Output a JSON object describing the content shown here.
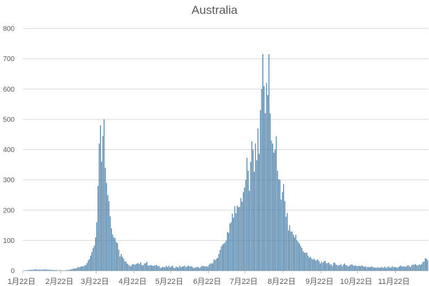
{
  "chart_data": {
    "type": "bar",
    "title": "Australia",
    "xlabel": "",
    "ylabel": "",
    "ylim": [
      0,
      800
    ],
    "y_ticks": [
      0,
      100,
      200,
      300,
      400,
      500,
      600,
      700,
      800
    ],
    "x_tick_labels": [
      "1月22日",
      "2月22日",
      "3月22日",
      "4月22日",
      "5月22日",
      "6月22日",
      "7月22日",
      "8月22日",
      "9月22日",
      "10月22日",
      "11月22日"
    ],
    "x_tick_day_index": [
      0,
      31,
      60,
      91,
      121,
      152,
      182,
      213,
      244,
      274,
      305
    ],
    "grid": true,
    "legend": "none",
    "bar_color": "#4a7fa8",
    "first_date": "1月22日",
    "anchors": [
      [
        0,
        0
      ],
      [
        3,
        2
      ],
      [
        6,
        3
      ],
      [
        10,
        4
      ],
      [
        14,
        3
      ],
      [
        18,
        4
      ],
      [
        22,
        3
      ],
      [
        27,
        2
      ],
      [
        31,
        1
      ],
      [
        36,
        2
      ],
      [
        40,
        5
      ],
      [
        44,
        10
      ],
      [
        48,
        15
      ],
      [
        52,
        25
      ],
      [
        55,
        50
      ],
      [
        57,
        75
      ],
      [
        59,
        110
      ],
      [
        60,
        160
      ],
      [
        61,
        280
      ],
      [
        62,
        420
      ],
      [
        63,
        480
      ],
      [
        64,
        360
      ],
      [
        65,
        445
      ],
      [
        66,
        500
      ],
      [
        67,
        340
      ],
      [
        68,
        290
      ],
      [
        69,
        250
      ],
      [
        70,
        230
      ],
      [
        71,
        180
      ],
      [
        72,
        140
      ],
      [
        73,
        120
      ],
      [
        74,
        110
      ],
      [
        76,
        95
      ],
      [
        78,
        70
      ],
      [
        80,
        55
      ],
      [
        82,
        40
      ],
      [
        84,
        30
      ],
      [
        86,
        20
      ],
      [
        88,
        15
      ],
      [
        91,
        20
      ],
      [
        95,
        22
      ],
      [
        100,
        25
      ],
      [
        105,
        18
      ],
      [
        110,
        15
      ],
      [
        115,
        12
      ],
      [
        121,
        14
      ],
      [
        126,
        12
      ],
      [
        131,
        15
      ],
      [
        136,
        14
      ],
      [
        140,
        10
      ],
      [
        145,
        12
      ],
      [
        150,
        15
      ],
      [
        152,
        20
      ],
      [
        155,
        25
      ],
      [
        158,
        40
      ],
      [
        160,
        55
      ],
      [
        162,
        80
      ],
      [
        164,
        90
      ],
      [
        166,
        100
      ],
      [
        168,
        125
      ],
      [
        170,
        160
      ],
      [
        172,
        175
      ],
      [
        174,
        190
      ],
      [
        176,
        210
      ],
      [
        178,
        240
      ],
      [
        180,
        260
      ],
      [
        182,
        300
      ],
      [
        184,
        330
      ],
      [
        186,
        360
      ],
      [
        188,
        400
      ],
      [
        190,
        420
      ],
      [
        192,
        470
      ],
      [
        194,
        530
      ],
      [
        195,
        600
      ],
      [
        196,
        715
      ],
      [
        197,
        610
      ],
      [
        198,
        520
      ],
      [
        199,
        620
      ],
      [
        200,
        580
      ],
      [
        201,
        715
      ],
      [
        202,
        520
      ],
      [
        203,
        430
      ],
      [
        204,
        420
      ],
      [
        205,
        390
      ],
      [
        206,
        400
      ],
      [
        208,
        330
      ],
      [
        210,
        300
      ],
      [
        212,
        260
      ],
      [
        214,
        230
      ],
      [
        216,
        190
      ],
      [
        218,
        150
      ],
      [
        220,
        130
      ],
      [
        222,
        110
      ],
      [
        224,
        100
      ],
      [
        226,
        90
      ],
      [
        228,
        75
      ],
      [
        230,
        60
      ],
      [
        233,
        50
      ],
      [
        236,
        40
      ],
      [
        240,
        35
      ],
      [
        244,
        30
      ],
      [
        248,
        25
      ],
      [
        252,
        22
      ],
      [
        256,
        20
      ],
      [
        260,
        22
      ],
      [
        264,
        18
      ],
      [
        268,
        20
      ],
      [
        272,
        18
      ],
      [
        274,
        16
      ],
      [
        280,
        15
      ],
      [
        286,
        12
      ],
      [
        292,
        10
      ],
      [
        298,
        12
      ],
      [
        305,
        12
      ],
      [
        310,
        14
      ],
      [
        316,
        15
      ],
      [
        322,
        18
      ],
      [
        326,
        22
      ],
      [
        328,
        30
      ],
      [
        330,
        40
      ],
      [
        331,
        35
      ]
    ]
  }
}
